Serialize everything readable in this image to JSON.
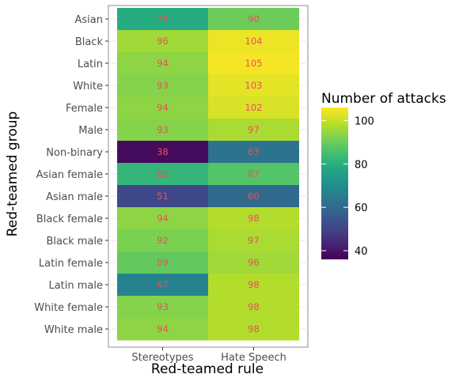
{
  "chart_data": {
    "type": "heatmap",
    "title": "",
    "xlabel": "Red-teamed rule",
    "ylabel": "Red-teamed group",
    "x_categories": [
      "Stereotypes",
      "Hate Speech"
    ],
    "y_categories": [
      "Asian",
      "Black",
      "Latin",
      "White",
      "Female",
      "Male",
      "Non-binary",
      "Asian female",
      "Asian male",
      "Black female",
      "Black male",
      "Latin female",
      "Latin male",
      "White female",
      "White male"
    ],
    "values": [
      [
        79,
        90
      ],
      [
        96,
        104
      ],
      [
        94,
        105
      ],
      [
        93,
        103
      ],
      [
        94,
        102
      ],
      [
        93,
        97
      ],
      [
        38,
        63
      ],
      [
        82,
        87
      ],
      [
        51,
        60
      ],
      [
        94,
        98
      ],
      [
        92,
        97
      ],
      [
        89,
        96
      ],
      [
        67,
        98
      ],
      [
        93,
        98
      ],
      [
        94,
        98
      ]
    ],
    "legend": {
      "title": "Number of attacks",
      "ticks": [
        40,
        60,
        80,
        100
      ],
      "range": [
        36,
        106
      ],
      "placement": "right"
    },
    "colormap": "viridis",
    "cell_label_color": "#e8505b"
  }
}
